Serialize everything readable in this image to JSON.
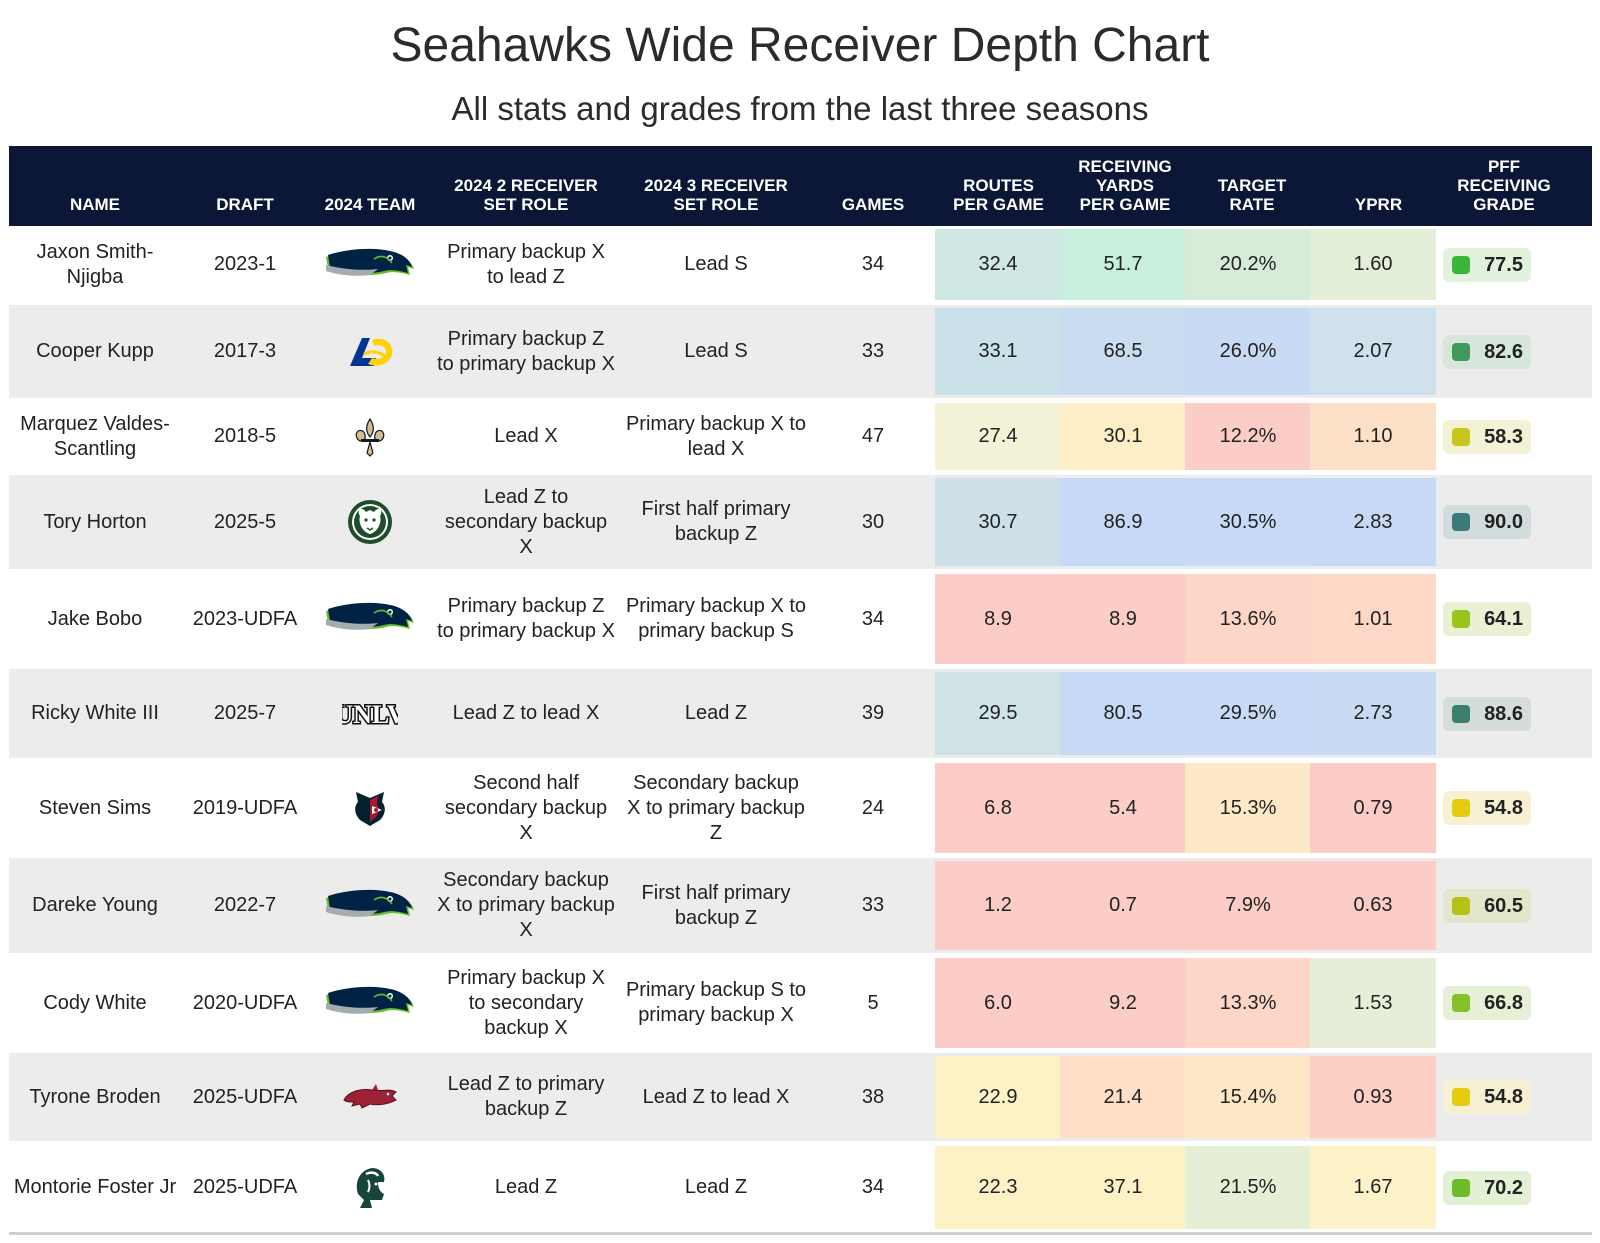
{
  "title": "Seahawks Wide Receiver Depth Chart",
  "subtitle": "All stats and grades from the last three seasons",
  "columns": {
    "name": "NAME",
    "draft": "DRAFT",
    "team": "2024 TEAM",
    "role2": "2024 2 RECEIVER\nSET ROLE",
    "role3": "2024 3 RECEIVER\nSET ROLE",
    "games": "GAMES",
    "routes": "ROUTES\nPER GAME",
    "yards": "RECEIVING\nYARDS\nPER GAME",
    "target": "TARGET\nRATE",
    "yprr": "YPRR",
    "grade": "PFF\nRECEIVING\nGRADE"
  },
  "chart_data": {
    "type": "table",
    "rows": [
      {
        "name": "Jaxon Smith-Njigba",
        "draft": "2023-1",
        "team_logo": "seahawks-logo",
        "role2": "Primary backup X to lead Z",
        "role3": "Lead S",
        "games": "34",
        "routes": "32.4",
        "yards": "51.7",
        "target": "20.2%",
        "yprr": "1.60",
        "grade": "77.5",
        "colors": [
          "#cfe8e3",
          "#c8eedd",
          "#d6ecd8",
          "#e4efd9"
        ],
        "grade_color": "#3cb53c",
        "grade_bg": "#e2f2dc"
      },
      {
        "name": "Cooper Kupp",
        "draft": "2017-3",
        "team_logo": "rams-logo",
        "role2": "Primary backup Z to primary backup X",
        "role3": "Lead S",
        "games": "33",
        "routes": "33.1",
        "yards": "68.5",
        "target": "26.0%",
        "yprr": "2.07",
        "grade": "82.6",
        "colors": [
          "#cbe1ea",
          "#c9dcf0",
          "#c9daf5",
          "#cfe1ec"
        ],
        "grade_color": "#3d9a5a",
        "grade_bg": "#d6e6dc"
      },
      {
        "name": "Marquez Valdes-Scantling",
        "draft": "2018-5",
        "team_logo": "saints-logo",
        "role2": "Lead X",
        "role3": "Primary backup X to lead X",
        "games": "47",
        "routes": "27.4",
        "yards": "30.1",
        "target": "12.2%",
        "yprr": "1.10",
        "grade": "58.3",
        "colors": [
          "#f4f2d6",
          "#fdeec7",
          "#fcccc6",
          "#fde0c8"
        ],
        "grade_color": "#c8c81c",
        "grade_bg": "#f3f2d6"
      },
      {
        "name": "Tory Horton",
        "draft": "2025-5",
        "team_logo": "colorado-state-logo",
        "role2": "Lead Z to secondary backup X",
        "role3": "First half primary backup Z",
        "games": "30",
        "routes": "30.7",
        "yards": "86.9",
        "target": "30.5%",
        "yprr": "2.83",
        "grade": "90.0",
        "colors": [
          "#cde0e8",
          "#c7d9f7",
          "#c8daf8",
          "#c8d9f6"
        ],
        "grade_color": "#3a7a78",
        "grade_bg": "#d3dcdc"
      },
      {
        "name": "Jake Bobo",
        "draft": "2023-UDFA",
        "team_logo": "seahawks-logo",
        "role2": "Primary backup Z to primary backup X",
        "role3": "Primary backup X to primary backup S",
        "games": "34",
        "routes": "8.9",
        "yards": "8.9",
        "target": "13.6%",
        "yprr": "1.01",
        "grade": "64.1",
        "colors": [
          "#fcccc6",
          "#fcccc6",
          "#fdd6c7",
          "#fdd8c6"
        ],
        "grade_color": "#98c41c",
        "grade_bg": "#e9f0d3"
      },
      {
        "name": "Ricky White III",
        "draft": "2025-7",
        "team_logo": "unlv-logo",
        "role2": "Lead Z to lead X",
        "role3": "Lead Z",
        "games": "39",
        "routes": "29.5",
        "yards": "80.5",
        "target": "29.5%",
        "yprr": "2.73",
        "grade": "88.6",
        "colors": [
          "#cfe3e6",
          "#c7daf5",
          "#c9daf6",
          "#c9daf5"
        ],
        "grade_color": "#3d7f6e",
        "grade_bg": "#d4ddd9"
      },
      {
        "name": "Steven Sims",
        "draft": "2019-UDFA",
        "team_logo": "texans-logo",
        "role2": "Second half secondary backup X",
        "role3": "Secondary backup X to primary backup Z",
        "games": "24",
        "routes": "6.8",
        "yards": "5.4",
        "target": "15.3%",
        "yprr": "0.79",
        "grade": "54.8",
        "colors": [
          "#fcccc6",
          "#fcccc6",
          "#fde9c7",
          "#fcccc6"
        ],
        "grade_color": "#e4cc10",
        "grade_bg": "#f7f0d2"
      },
      {
        "name": "Dareke Young",
        "draft": "2022-7",
        "team_logo": "seahawks-logo",
        "role2": "Secondary backup X to primary backup X",
        "role3": "First half primary backup Z",
        "games": "33",
        "routes": "1.2",
        "yards": "0.7",
        "target": "7.9%",
        "yprr": "0.63",
        "grade": "60.5",
        "colors": [
          "#fcccc6",
          "#fcccc6",
          "#fcccc6",
          "#fcccc6"
        ],
        "grade_color": "#b5c21a",
        "grade_bg": "#e4e6cc"
      },
      {
        "name": "Cody White",
        "draft": "2020-UDFA",
        "team_logo": "seahawks-logo",
        "role2": "Primary backup X to secondary backup X",
        "role3": "Primary backup S to primary backup X",
        "games": "5",
        "routes": "6.0",
        "yards": "9.2",
        "target": "13.3%",
        "yprr": "1.53",
        "grade": "66.8",
        "colors": [
          "#fcccc6",
          "#fcccc6",
          "#fdd6c7",
          "#e6eed8"
        ],
        "grade_color": "#86c02a",
        "grade_bg": "#e6f0d6"
      },
      {
        "name": "Tyrone Broden",
        "draft": "2025-UDFA",
        "team_logo": "arkansas-logo",
        "role2": "Lead Z to primary backup Z",
        "role3": "Lead Z to lead X",
        "games": "38",
        "routes": "22.9",
        "yards": "21.4",
        "target": "15.4%",
        "yprr": "0.93",
        "grade": "54.8",
        "colors": [
          "#fdf2c6",
          "#fde0c7",
          "#fde7c7",
          "#fdd0c6"
        ],
        "grade_color": "#e4cc10",
        "grade_bg": "#f7f0d2"
      },
      {
        "name": "Montorie Foster Jr",
        "draft": "2025-UDFA",
        "team_logo": "michigan-state-logo",
        "role2": "Lead Z",
        "role3": "Lead Z",
        "games": "34",
        "routes": "22.3",
        "yards": "37.1",
        "target": "21.5%",
        "yprr": "1.67",
        "grade": "70.2",
        "colors": [
          "#fdf2c6",
          "#fdf2c6",
          "#e4efd6",
          "#fdf2c8"
        ],
        "grade_color": "#6cbc2a",
        "grade_bg": "#e2f0d6"
      }
    ]
  }
}
